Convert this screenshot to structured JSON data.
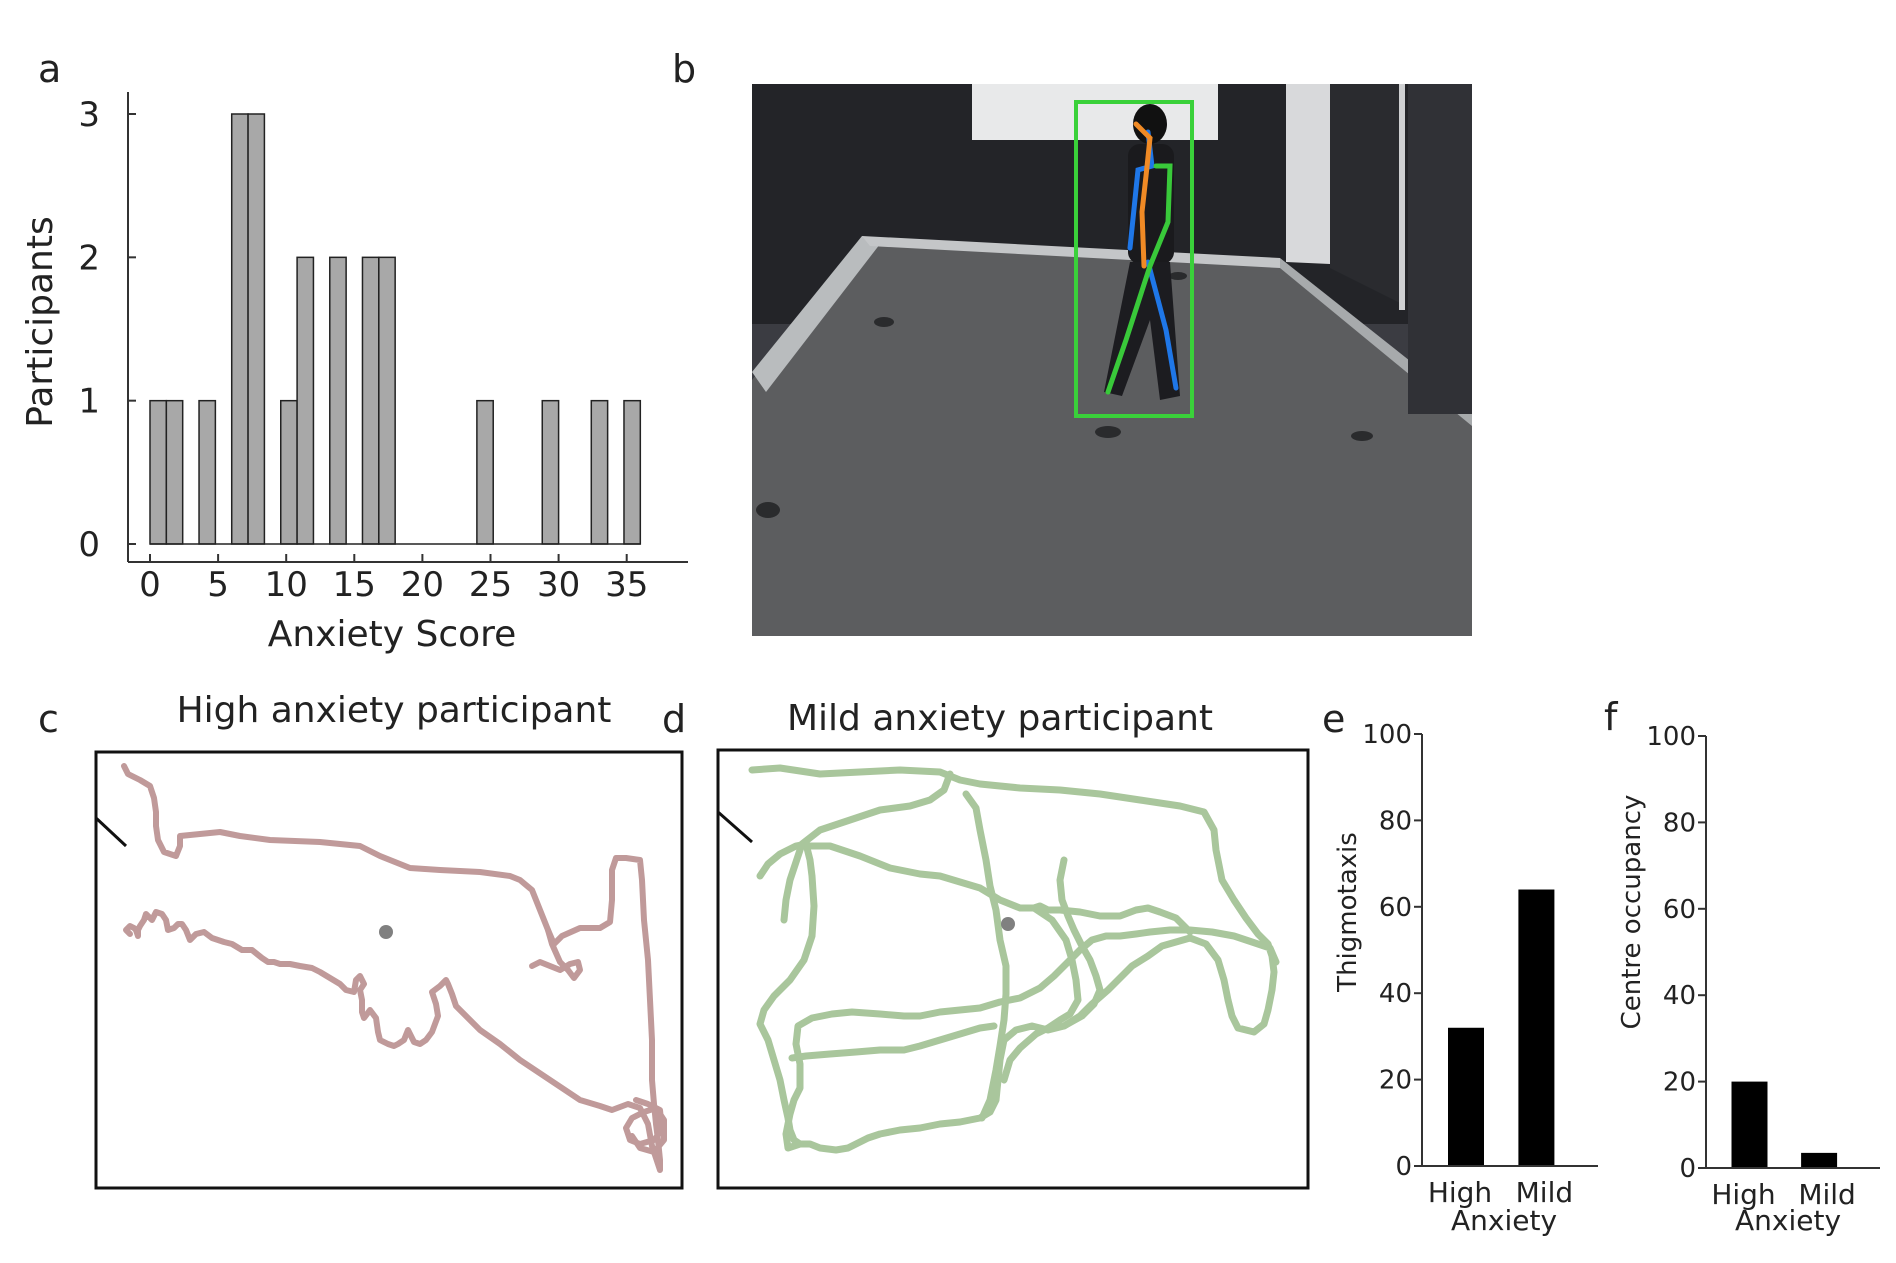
{
  "panel_letters": {
    "a": "a",
    "b": "b",
    "c": "c",
    "d": "d",
    "e": "e",
    "f": "f"
  },
  "colors": {
    "bar_gray": "#a8a8a8",
    "bar_black": "#000000",
    "high_track": "#c09a9a",
    "mild_track": "#a9c69c",
    "bbox_green": "#3ad13a",
    "skeleton_blue": "#1f77e8",
    "skeleton_orange": "#f08a25",
    "skeleton_green": "#39c93a"
  },
  "chart_data": [
    {
      "panel": "a",
      "type": "bar",
      "xlabel": "Anxiety Score",
      "ylabel": "Participants",
      "xlim": [
        -1,
        37
      ],
      "ylim": [
        0,
        3
      ],
      "xticks": [
        0,
        5,
        10,
        15,
        20,
        25,
        30,
        35
      ],
      "yticks": [
        0,
        1,
        2,
        3
      ],
      "bin_width": 1.2,
      "x": [
        0.6,
        1.8,
        4.2,
        6.6,
        7.8,
        10.2,
        11.4,
        13.8,
        16.2,
        17.4,
        24.6,
        29.4,
        33.0,
        35.4
      ],
      "values": [
        1,
        1,
        1,
        3,
        3,
        1,
        2,
        2,
        2,
        2,
        1,
        1,
        1,
        1
      ]
    },
    {
      "panel": "e",
      "type": "bar",
      "xlabel": "Anxiety",
      "ylabel": "Thigmotaxis",
      "categories": [
        "High",
        "Mild"
      ],
      "values": [
        32,
        64
      ],
      "ylim": [
        0,
        100
      ],
      "yticks": [
        0,
        20,
        40,
        60,
        80,
        100
      ]
    },
    {
      "panel": "f",
      "type": "bar",
      "xlabel": "Anxiety",
      "ylabel": "Centre occupancy",
      "categories": [
        "High",
        "Mild"
      ],
      "values": [
        20,
        3.5
      ],
      "ylim": [
        0,
        100
      ],
      "yticks": [
        0,
        20,
        40,
        60,
        80,
        100
      ]
    }
  ],
  "tracks": {
    "high": {
      "title": "High anxiety participant"
    },
    "mild": {
      "title": "Mild anxiety participant"
    }
  },
  "photo": {
    "description_hidden": true
  }
}
